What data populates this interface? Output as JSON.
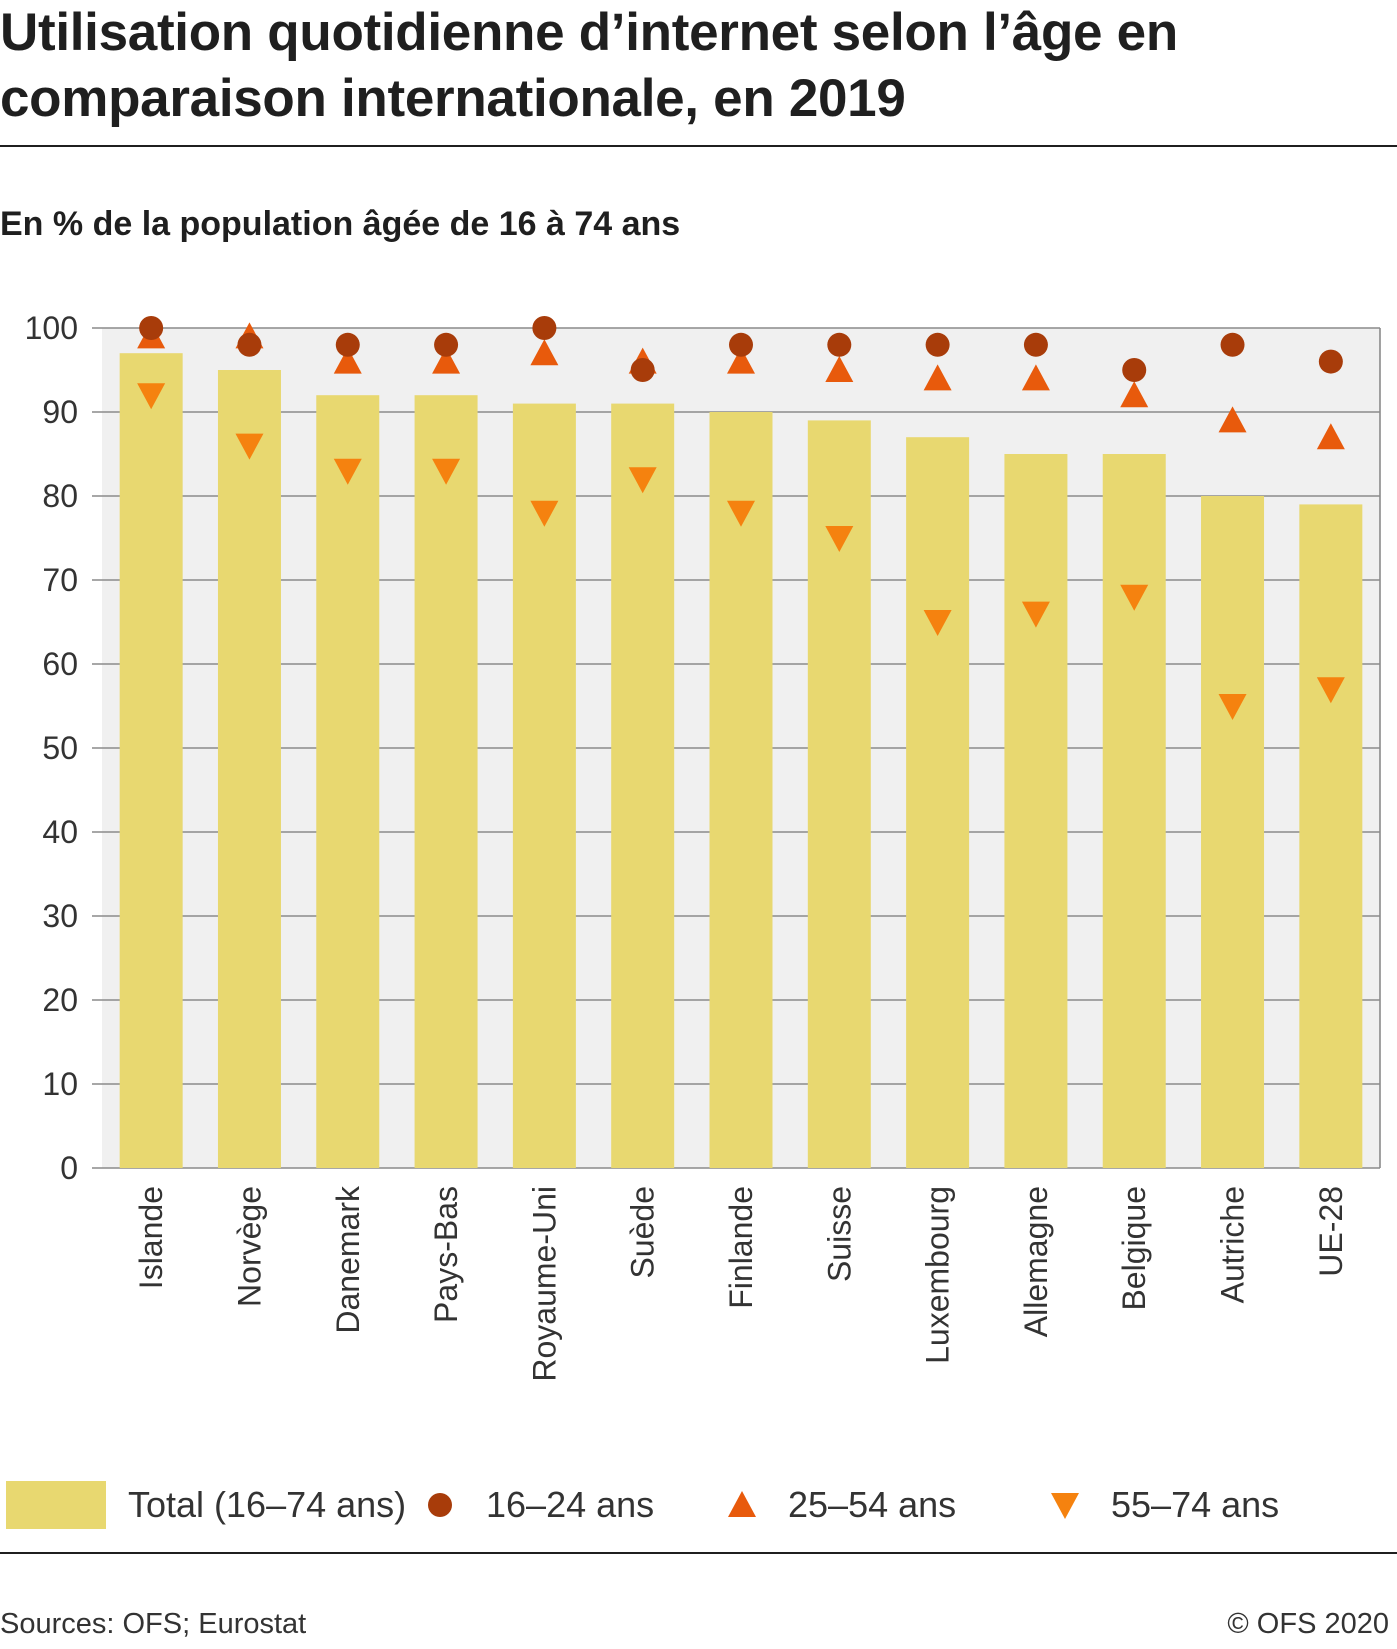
{
  "title": "Utilisation quotidienne d’internet selon l’âge en comparaison internationale, en 2019",
  "subtitle": "En % de la population âgée de 16 à 74 ans",
  "colors": {
    "bar": "#e8d870",
    "plot_bg": "#f0f0f0",
    "circle": "#a83c0a",
    "triangle_up": "#e85a0c",
    "triangle_down": "#f5820f",
    "grid": "#8a8a8a"
  },
  "legend": {
    "total": "Total (16–74 ans)",
    "age_16_24": "16–24 ans",
    "age_25_54": "25–54 ans",
    "age_55_74": "55–74 ans"
  },
  "footer": {
    "source": "Sources: OFS; Eurostat",
    "copyright": "© OFS 2020"
  },
  "chart_data": {
    "type": "bar",
    "categories": [
      "Islande",
      "Norvège",
      "Danemark",
      "Pays-Bas",
      "Royaume-Uni",
      "Suède",
      "Finlande",
      "Suisse",
      "Luxembourg",
      "Allemagne",
      "Belgique",
      "Autriche",
      "UE-28"
    ],
    "series": [
      {
        "name": "Total (16–74 ans)",
        "type": "bar",
        "values": [
          97,
          95,
          92,
          92,
          91,
          91,
          90,
          89,
          87,
          85,
          85,
          80,
          79
        ]
      },
      {
        "name": "16–24 ans",
        "type": "scatter",
        "marker": "circle",
        "values": [
          100,
          98,
          98,
          98,
          100,
          95,
          98,
          98,
          98,
          98,
          95,
          98,
          96
        ]
      },
      {
        "name": "25–54 ans",
        "type": "scatter",
        "marker": "triangle-up",
        "values": [
          99,
          99,
          96,
          96,
          97,
          96,
          96,
          95,
          94,
          94,
          92,
          89,
          87
        ]
      },
      {
        "name": "55–74 ans",
        "type": "scatter",
        "marker": "triangle-down",
        "values": [
          92,
          86,
          83,
          83,
          78,
          82,
          78,
          75,
          65,
          66,
          68,
          55,
          57
        ]
      }
    ],
    "yticks": [
      "0",
      "10",
      "20",
      "30",
      "40",
      "50",
      "60",
      "70",
      "80",
      "90",
      "100"
    ],
    "ylim": [
      0,
      100
    ],
    "grid": true,
    "legend_position": "bottom"
  }
}
